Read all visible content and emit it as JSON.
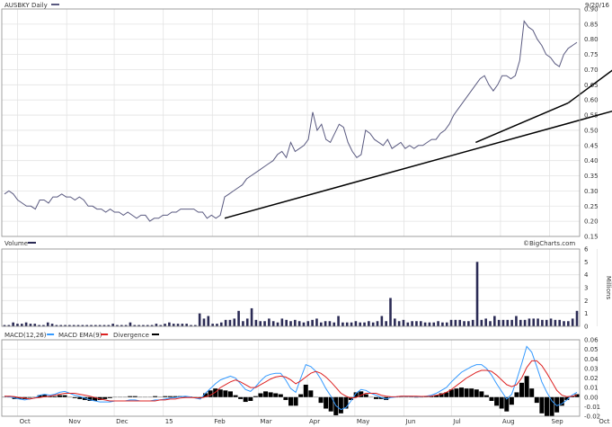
{
  "header": {
    "symbol_label": "AUSBKY  Daily",
    "date_label": "9/20/16",
    "brand": "©BigCharts.com"
  },
  "colors": {
    "price": "#5a5a80",
    "volume": "#2b2b55",
    "macd": "#3399ff",
    "signal": "#dd2222",
    "divergence": "#000000",
    "trendline": "#000000"
  },
  "chart_data": [
    {
      "type": "line",
      "panel": "price",
      "series": [
        {
          "name": "AUSBKY",
          "values": [
            0.29,
            0.3,
            0.29,
            0.27,
            0.26,
            0.25,
            0.25,
            0.24,
            0.27,
            0.27,
            0.26,
            0.28,
            0.28,
            0.29,
            0.28,
            0.28,
            0.27,
            0.28,
            0.27,
            0.25,
            0.25,
            0.24,
            0.24,
            0.23,
            0.24,
            0.23,
            0.23,
            0.22,
            0.23,
            0.22,
            0.21,
            0.22,
            0.22,
            0.2,
            0.21,
            0.21,
            0.22,
            0.22,
            0.23,
            0.23,
            0.24,
            0.24,
            0.24,
            0.24,
            0.23,
            0.23,
            0.21,
            0.22,
            0.21,
            0.22,
            0.28,
            0.29,
            0.3,
            0.31,
            0.32,
            0.34,
            0.35,
            0.36,
            0.37,
            0.38,
            0.39,
            0.4,
            0.42,
            0.43,
            0.41,
            0.46,
            0.43,
            0.44,
            0.45,
            0.47,
            0.56,
            0.5,
            0.52,
            0.47,
            0.46,
            0.49,
            0.52,
            0.51,
            0.46,
            0.43,
            0.41,
            0.42,
            0.5,
            0.49,
            0.47,
            0.46,
            0.45,
            0.47,
            0.44,
            0.45,
            0.46,
            0.44,
            0.45,
            0.44,
            0.45,
            0.45,
            0.46,
            0.47,
            0.47,
            0.49,
            0.5,
            0.52,
            0.55,
            0.57,
            0.59,
            0.61,
            0.63,
            0.65,
            0.67,
            0.68,
            0.65,
            0.63,
            0.65,
            0.68,
            0.68,
            0.67,
            0.68,
            0.73,
            0.86,
            0.84,
            0.83,
            0.8,
            0.78,
            0.75,
            0.74,
            0.72,
            0.71,
            0.75,
            0.77,
            0.78,
            0.79
          ]
        }
      ],
      "x_start": "2015-09-21",
      "x_end": "2016-09-20",
      "x_tick_labels": [
        "Oct",
        "Nov",
        "Dec",
        "15",
        "Feb",
        "Mar",
        "Apr",
        "May",
        "Jun",
        "Jul",
        "Aug",
        "Sep",
        "Oct",
        "Nov",
        "Dec",
        "16",
        "Feb",
        "Mar",
        "Apr",
        "May",
        "Jun",
        "Jul",
        "Aug",
        "Sep"
      ],
      "y_ticks": [
        0.15,
        0.2,
        0.25,
        0.3,
        0.35,
        0.4,
        0.45,
        0.5,
        0.55,
        0.6,
        0.65,
        0.7,
        0.75,
        0.8,
        0.85,
        0.9
      ],
      "y_tick_labels": [
        "0.15",
        "0.20",
        "0.25",
        "0.30",
        "0.35",
        "0.40",
        "0.45",
        "0.50",
        "0.55",
        "0.60",
        "0.65",
        "0.70",
        "0.75",
        "0.80",
        "0.85",
        "0.90"
      ],
      "ylim": [
        0.15,
        0.9
      ],
      "grid": true,
      "trendlines": [
        {
          "from": {
            "x": 50,
            "y": 0.21
          },
          "to": {
            "x": 139,
            "y": 0.567
          }
        },
        {
          "from": {
            "x": 107,
            "y": 0.46
          },
          "to": {
            "x": 128,
            "y": 0.59
          }
        },
        {
          "from": {
            "x": 128,
            "y": 0.59
          },
          "to": {
            "x": 141,
            "y": 0.73
          }
        }
      ]
    },
    {
      "type": "bar",
      "panel": "volume",
      "legend": "Volume",
      "series": [
        {
          "name": "Volume",
          "values": [
            0.1,
            0.1,
            0.3,
            0.2,
            0.2,
            0.3,
            0.2,
            0.2,
            0.1,
            0.1,
            0.3,
            0.2,
            0.1,
            0.1,
            0.1,
            0.1,
            0.1,
            0.1,
            0.1,
            0.1,
            0.1,
            0.1,
            0.1,
            0.1,
            0.1,
            0.2,
            0.1,
            0.1,
            0.1,
            0.3,
            0.1,
            0.1,
            0.1,
            0.1,
            0.1,
            0.2,
            0.1,
            0.2,
            0.3,
            0.2,
            0.2,
            0.2,
            0.2,
            0.1,
            0.1,
            1.0,
            0.6,
            0.8,
            0.2,
            0.2,
            0.3,
            0.5,
            0.5,
            0.6,
            1.2,
            0.4,
            0.6,
            1.4,
            0.5,
            0.4,
            0.4,
            0.6,
            0.4,
            0.3,
            0.6,
            0.5,
            0.4,
            0.5,
            0.4,
            0.3,
            0.4,
            0.5,
            0.6,
            0.3,
            0.4,
            0.4,
            0.3,
            0.8,
            0.3,
            0.3,
            0.3,
            0.4,
            0.3,
            0.3,
            0.4,
            0.3,
            0.4,
            0.8,
            0.4,
            2.2,
            0.6,
            0.4,
            0.5,
            0.3,
            0.4,
            0.4,
            0.4,
            0.3,
            0.3,
            0.3,
            0.4,
            0.3,
            0.3,
            0.5,
            0.5,
            0.5,
            0.4,
            0.4,
            0.5,
            5.0,
            0.5,
            0.6,
            0.4,
            0.8,
            0.5,
            0.5,
            0.5,
            0.5,
            0.8,
            0.5,
            0.5,
            0.6,
            0.6,
            0.6,
            0.5,
            0.5,
            0.6,
            0.5,
            0.5,
            0.4,
            0.4,
            0.6,
            1.2
          ]
        }
      ],
      "y_ticks": [
        0,
        1,
        2,
        3,
        4,
        5,
        6
      ],
      "y_tick_labels": [
        "0",
        "1",
        "2",
        "3",
        "4",
        "5",
        "6"
      ],
      "ylabel": "Millions",
      "ylim": [
        0,
        6
      ],
      "grid": true
    },
    {
      "type": "line",
      "panel": "macd",
      "legend": [
        {
          "name": "MACD(12,26)",
          "color": "#3399ff"
        },
        {
          "name": "MACD EMA(9)",
          "color": "#dd2222"
        },
        {
          "name": "Divergence",
          "color": "#000000"
        }
      ],
      "series": [
        {
          "name": "MACD(12,26)",
          "values": [
            0.001,
            0.0004,
            -0.001,
            -0.002,
            -0.003,
            -0.002,
            -0.001,
            0.002,
            0.003,
            0.002,
            0.003,
            0.005,
            0.006,
            0.004,
            0.002,
            0.0007,
            -0.001,
            -0.003,
            -0.004,
            -0.005,
            -0.005,
            -0.005,
            -0.004,
            -0.004,
            -0.004,
            -0.003,
            -0.003,
            -0.004,
            -0.004,
            -0.004,
            -0.003,
            -0.003,
            -0.002,
            -0.001,
            -0.0004,
            0.0003,
            0.001,
            0.0002,
            -0.001,
            -0.002,
            0.004,
            0.009,
            0.014,
            0.018,
            0.02,
            0.022,
            0.02,
            0.014,
            0.008,
            0.006,
            0.011,
            0.017,
            0.022,
            0.024,
            0.025,
            0.025,
            0.018,
            0.009,
            0.005,
            0.02,
            0.034,
            0.032,
            0.027,
            0.019,
            0.009,
            0.001,
            -0.009,
            -0.013,
            -0.011,
            -0.004,
            0.004,
            0.008,
            0.007,
            0.004,
            0.002,
            -0.0003,
            -0.002,
            -0.0004,
            0.0002,
            0.001,
            0.001,
            0.0008,
            0.0006,
            0.0004,
            0.001,
            0.002,
            0.004,
            0.007,
            0.01,
            0.016,
            0.021,
            0.026,
            0.029,
            0.032,
            0.034,
            0.034,
            0.03,
            0.023,
            0.014,
            0.006,
            -0.002,
            0.003,
            0.018,
            0.035,
            0.053,
            0.047,
            0.032,
            0.016,
            0.005,
            -0.004,
            -0.009,
            -0.007,
            -0.003,
            0.002,
            0.005
          ]
        },
        {
          "name": "MACD EMA(9)",
          "values": [
            0.001,
            0.001,
            0.0004,
            -0.0004,
            -0.001,
            -0.002,
            -0.001,
            -0.0005,
            0.0005,
            0.001,
            0.002,
            0.003,
            0.004,
            0.004,
            0.004,
            0.003,
            0.002,
            0.001,
            -0.0004,
            -0.002,
            -0.003,
            -0.004,
            -0.004,
            -0.004,
            -0.004,
            -0.004,
            -0.004,
            -0.004,
            -0.004,
            -0.004,
            -0.004,
            -0.003,
            -0.003,
            -0.002,
            -0.002,
            -0.001,
            -0.0004,
            -0.0003,
            -0.0007,
            -0.001,
            0.0002,
            0.002,
            0.005,
            0.01,
            0.013,
            0.016,
            0.018,
            0.016,
            0.013,
            0.01,
            0.01,
            0.013,
            0.016,
            0.019,
            0.021,
            0.022,
            0.021,
            0.018,
            0.014,
            0.017,
            0.021,
            0.025,
            0.027,
            0.025,
            0.021,
            0.016,
            0.01,
            0.004,
            0.001,
            -0.001,
            -0.0005,
            0.002,
            0.004,
            0.004,
            0.004,
            0.002,
            0.001,
            0.0003,
            0.0004,
            0.001,
            0.001,
            0.001,
            0.001,
            0.0007,
            0.0008,
            0.001,
            0.002,
            0.003,
            0.005,
            0.008,
            0.012,
            0.016,
            0.02,
            0.023,
            0.026,
            0.028,
            0.028,
            0.027,
            0.023,
            0.018,
            0.013,
            0.011,
            0.013,
            0.02,
            0.031,
            0.038,
            0.038,
            0.033,
            0.025,
            0.016,
            0.007,
            0.002,
            0.0004,
            0.001,
            0.002
          ]
        },
        {
          "name": "Divergence",
          "values": [
            0,
            -0.0003,
            -0.002,
            -0.002,
            -0.002,
            -0.0007,
            -0.0001,
            0.002,
            0.003,
            0.001,
            0.0009,
            0.002,
            0.002,
            0,
            -0.001,
            -0.002,
            -0.003,
            -0.004,
            -0.004,
            -0.003,
            -0.002,
            -0.001,
            0,
            0,
            0,
            0.001,
            0.001,
            0,
            0,
            0,
            0.001,
            0,
            0.001,
            0.001,
            0.001,
            0.001,
            0.001,
            0.0005,
            -0.0003,
            -0.001,
            0.004,
            0.007,
            0.009,
            0.008,
            0.007,
            0.006,
            0.002,
            -0.002,
            -0.005,
            -0.004,
            0.001,
            0.004,
            0.006,
            0.005,
            0.004,
            0.003,
            -0.003,
            -0.009,
            -0.009,
            0.003,
            0.013,
            0.007,
            0,
            -0.006,
            -0.012,
            -0.015,
            -0.019,
            -0.017,
            -0.012,
            -0.003,
            0.005,
            0.006,
            0.003,
            0,
            -0.002,
            -0.002,
            -0.003,
            -0.0007,
            -0.0002,
            0,
            0,
            0,
            -0.0004,
            -0.0003,
            0.0002,
            0.001,
            0.002,
            0.004,
            0.005,
            0.008,
            0.009,
            0.01,
            0.009,
            0.009,
            0.008,
            0.006,
            0.002,
            -0.004,
            -0.009,
            -0.012,
            -0.015,
            -0.008,
            0.005,
            0.015,
            0.022,
            0.009,
            -0.006,
            -0.017,
            -0.02,
            -0.02,
            -0.016,
            -0.009,
            -0.003,
            0.001,
            0.003
          ]
        }
      ],
      "y_ticks": [
        -0.02,
        -0.01,
        0,
        0.01,
        0.02,
        0.03,
        0.04,
        0.05,
        0.06
      ],
      "y_tick_labels": [
        "-0.02",
        "-0.01",
        "0.00",
        "0.01",
        "0.02",
        "0.03",
        "0.04",
        "0.05",
        "0.06"
      ],
      "ylim": [
        -0.02,
        0.06
      ],
      "grid": true
    }
  ]
}
